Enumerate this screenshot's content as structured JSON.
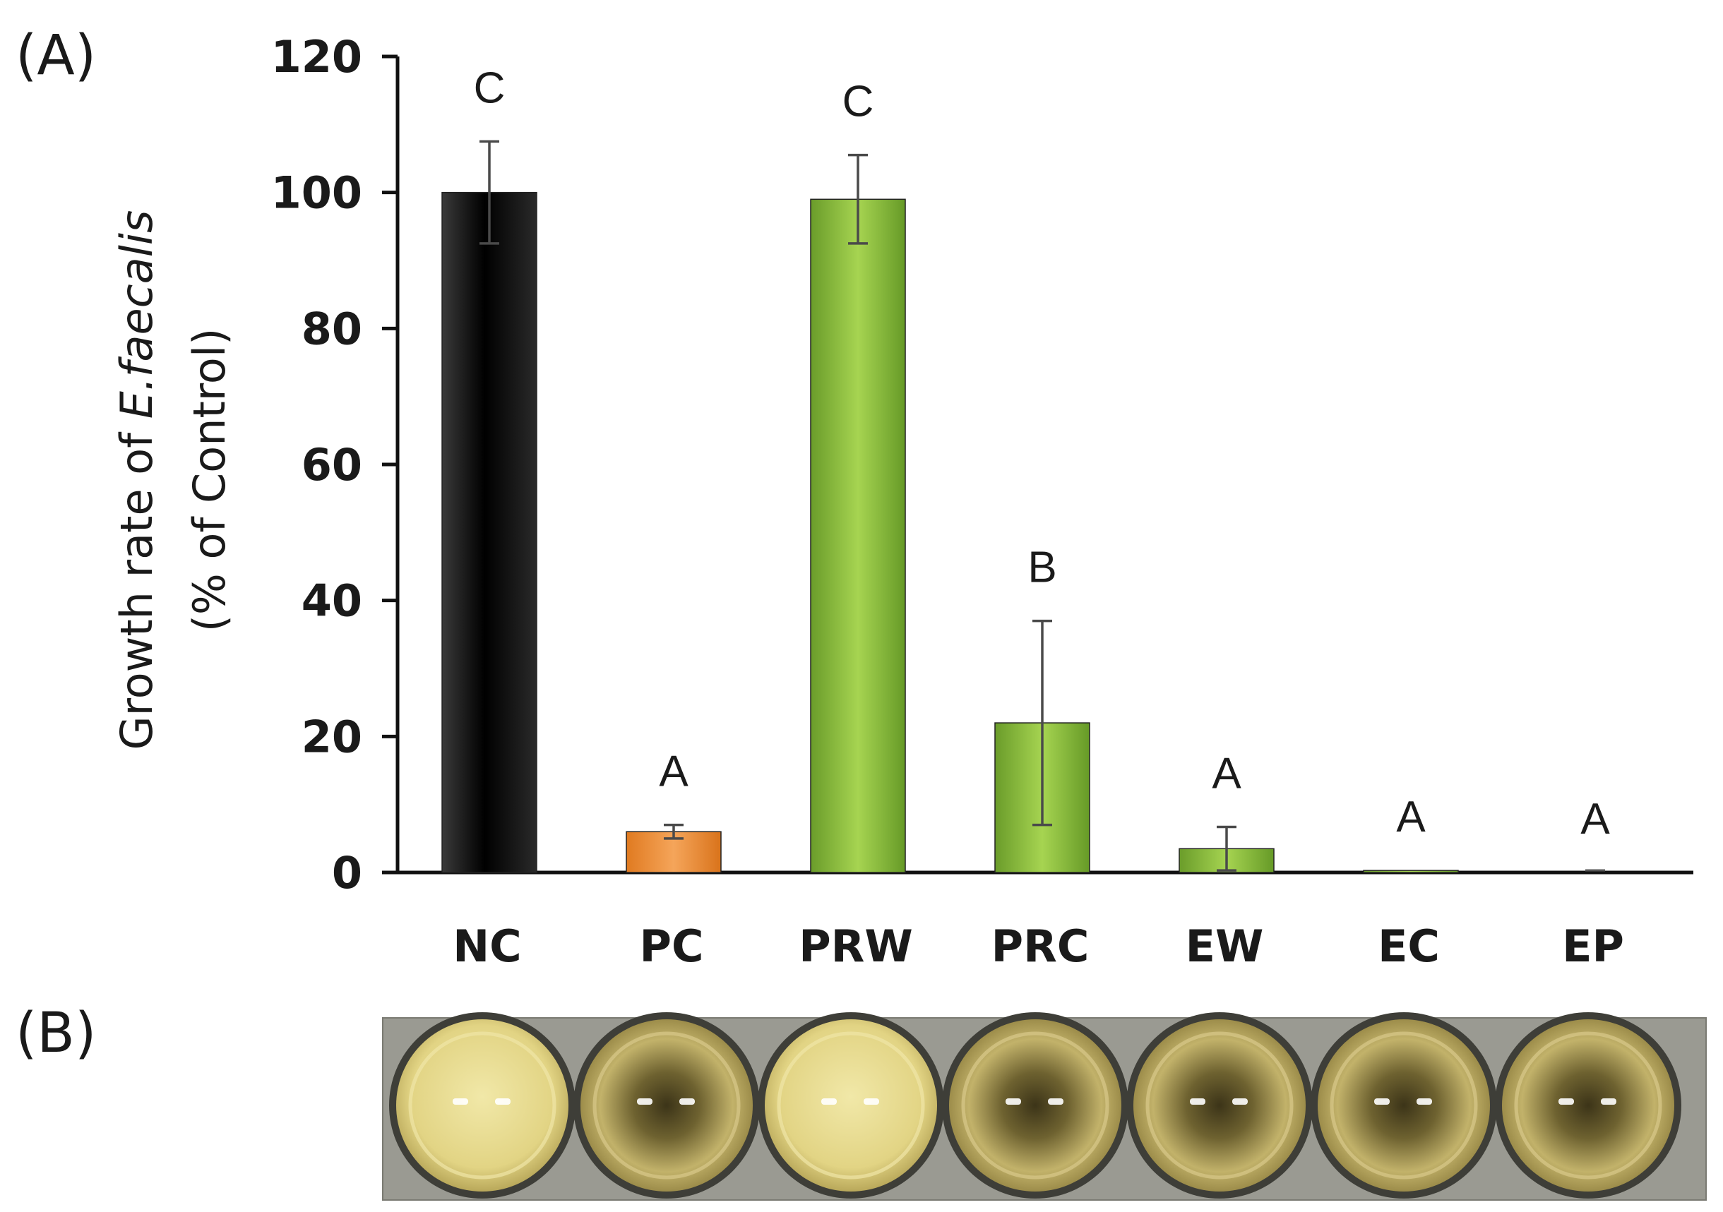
{
  "figure": {
    "panel_a_label": "(A)",
    "panel_b_label": "(B)"
  },
  "chart_data": {
    "type": "bar",
    "title": "",
    "xlabel": "",
    "ylabel_line1_prefix": "Growth rate of ",
    "ylabel_line1_italic": "E.faecalis",
    "ylabel_line2": "(% of Control)",
    "ylim": [
      0,
      120
    ],
    "yticks": [
      0,
      20,
      40,
      60,
      80,
      100,
      120
    ],
    "grid": false,
    "categories": [
      "NC",
      "PC",
      "PRW",
      "PRC",
      "EW",
      "EC",
      "EP"
    ],
    "values": [
      100,
      6,
      99,
      22,
      3.5,
      0.3,
      0
    ],
    "errors": [
      7.5,
      1,
      6.5,
      15,
      3.2,
      0,
      0
    ],
    "significance": [
      "C",
      "A",
      "C",
      "B",
      "A",
      "A",
      "A"
    ],
    "colors": [
      "#111111",
      "#f08a2c",
      "#8cc63f",
      "#8cc63f",
      "#8cc63f",
      "#8cc63f",
      "#8cc63f"
    ]
  },
  "photo": {
    "wells": 7,
    "well_colors": [
      "#e8dc90",
      "#b4a45a",
      "#e8dc90",
      "#b7a65c",
      "#aa9a52",
      "#aa9a52",
      "#aa9a52"
    ]
  }
}
